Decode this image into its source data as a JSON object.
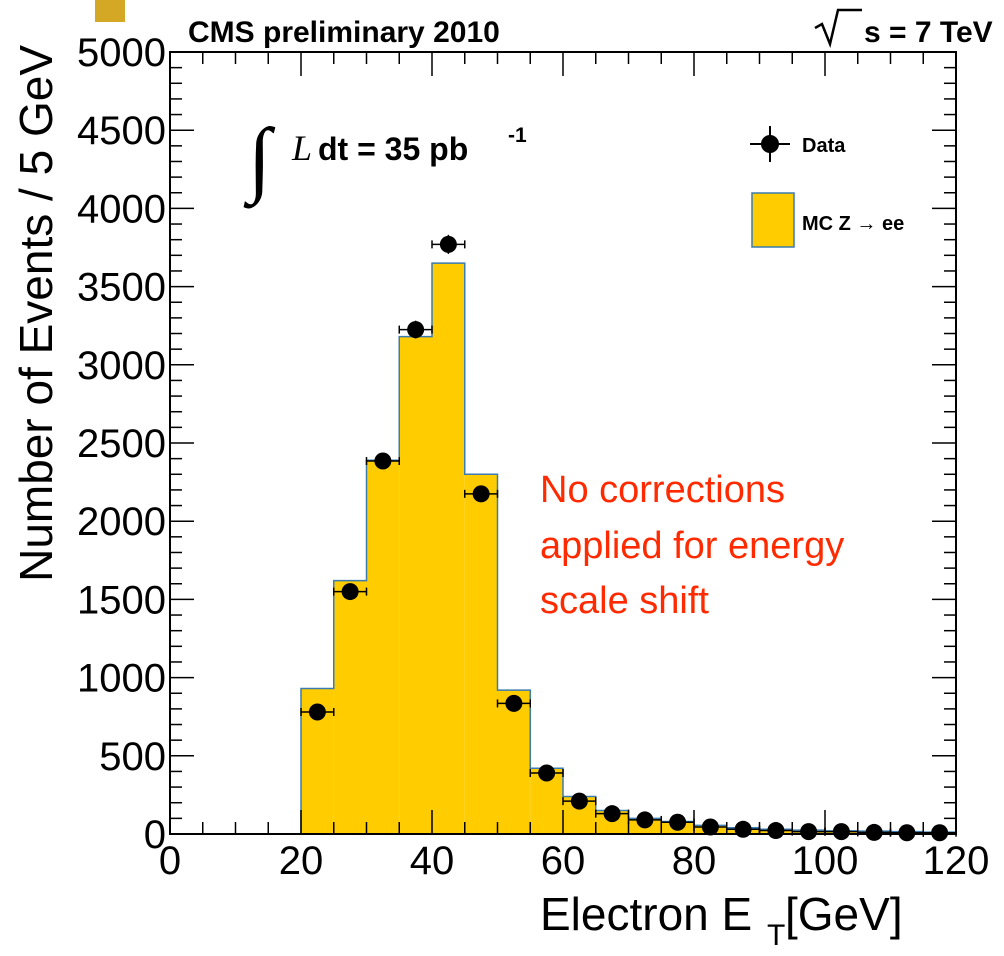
{
  "chart_data": {
    "type": "bar",
    "header_left": "CMS preliminary 2010",
    "header_right": "s = 7 TeV",
    "lumi_symbol": "L",
    "lumi_text": "dt = 35 pb",
    "lumi_sup": "-1",
    "xlabel_main": "Electron E",
    "xlabel_sub": "T",
    "xlabel_unit": " [GeV]",
    "ylabel": "Number of Events / 5 GeV",
    "xlim": [
      0,
      120
    ],
    "ylim": [
      0,
      5000
    ],
    "x_ticks": [
      0,
      20,
      40,
      60,
      80,
      100,
      120
    ],
    "y_ticks": [
      0,
      500,
      1000,
      1500,
      2000,
      2500,
      3000,
      3500,
      4000,
      4500,
      5000
    ],
    "bin_width": 5,
    "mc": {
      "name": "MC Z → ee",
      "color": "#FFCC00",
      "edge_color": "#3a7bb0",
      "bins": [
        {
          "low": 20,
          "high": 25,
          "value": 930
        },
        {
          "low": 25,
          "high": 30,
          "value": 1620
        },
        {
          "low": 30,
          "high": 35,
          "value": 2390
        },
        {
          "low": 35,
          "high": 40,
          "value": 3180
        },
        {
          "low": 40,
          "high": 45,
          "value": 3650
        },
        {
          "low": 45,
          "high": 50,
          "value": 2300
        },
        {
          "low": 50,
          "high": 55,
          "value": 920
        },
        {
          "low": 55,
          "high": 60,
          "value": 420
        },
        {
          "low": 60,
          "high": 65,
          "value": 240
        },
        {
          "low": 65,
          "high": 70,
          "value": 150
        },
        {
          "low": 70,
          "high": 75,
          "value": 100
        },
        {
          "low": 75,
          "high": 80,
          "value": 80
        },
        {
          "low": 80,
          "high": 85,
          "value": 55
        },
        {
          "low": 85,
          "high": 90,
          "value": 40
        },
        {
          "low": 90,
          "high": 95,
          "value": 30
        },
        {
          "low": 95,
          "high": 100,
          "value": 25
        },
        {
          "low": 100,
          "high": 105,
          "value": 20
        },
        {
          "low": 105,
          "high": 110,
          "value": 18
        },
        {
          "low": 110,
          "high": 115,
          "value": 15
        },
        {
          "low": 115,
          "high": 120,
          "value": 12
        }
      ]
    },
    "data": {
      "name": "Data",
      "color": "#000000",
      "points": [
        {
          "x": 22.5,
          "y": 780,
          "err": 28
        },
        {
          "x": 27.5,
          "y": 1550,
          "err": 39
        },
        {
          "x": 32.5,
          "y": 2385,
          "err": 49
        },
        {
          "x": 37.5,
          "y": 3225,
          "err": 57
        },
        {
          "x": 42.5,
          "y": 3770,
          "err": 61
        },
        {
          "x": 47.5,
          "y": 2175,
          "err": 47
        },
        {
          "x": 52.5,
          "y": 835,
          "err": 29
        },
        {
          "x": 57.5,
          "y": 390,
          "err": 20
        },
        {
          "x": 62.5,
          "y": 210,
          "err": 14
        },
        {
          "x": 67.5,
          "y": 130,
          "err": 11
        },
        {
          "x": 72.5,
          "y": 90,
          "err": 9
        },
        {
          "x": 77.5,
          "y": 75,
          "err": 9
        },
        {
          "x": 82.5,
          "y": 45,
          "err": 7
        },
        {
          "x": 87.5,
          "y": 30,
          "err": 5
        },
        {
          "x": 92.5,
          "y": 22,
          "err": 5
        },
        {
          "x": 97.5,
          "y": 15,
          "err": 4
        },
        {
          "x": 102.5,
          "y": 15,
          "err": 4
        },
        {
          "x": 107.5,
          "y": 10,
          "err": 3
        },
        {
          "x": 112.5,
          "y": 8,
          "err": 3
        },
        {
          "x": 117.5,
          "y": 8,
          "err": 3
        }
      ]
    },
    "annotation": {
      "lines": [
        "No corrections",
        "applied for energy",
        "scale shift"
      ],
      "color": "#FF2A00"
    },
    "legend_placement": "top-right",
    "grid": false
  }
}
